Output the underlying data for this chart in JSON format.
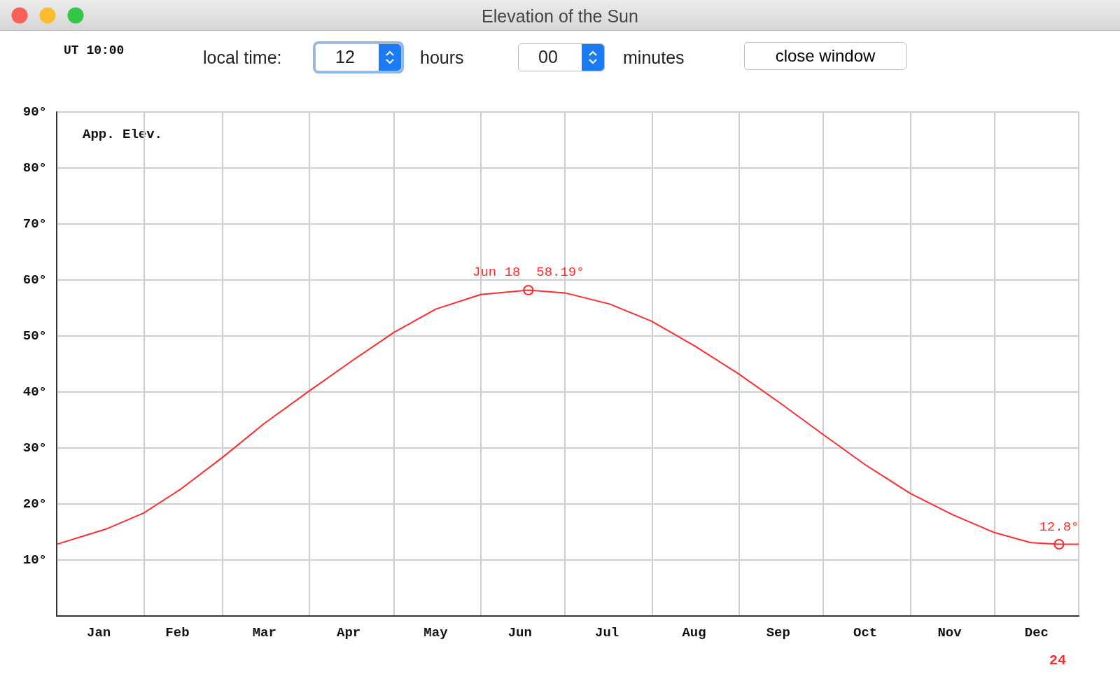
{
  "chart_data": {
    "type": "line",
    "title": "Elevation of the Sun",
    "x": [
      "--01-01",
      "--01-19",
      "--02-01",
      "--02-14",
      "--03-01",
      "--03-16",
      "--04-01",
      "--04-16",
      "--05-01",
      "--05-16",
      "--06-01",
      "--06-18",
      "--07-01",
      "--07-17",
      "--08-01",
      "--08-16",
      "--09-01",
      "--09-16",
      "--10-01",
      "--10-16",
      "--11-01",
      "--11-16",
      "--12-01",
      "--12-14",
      "--12-24",
      "--12-31"
    ],
    "series": [
      {
        "color": "#ff2a2a",
        "values": [
          12.8,
          15.6,
          18.4,
          22.6,
          28.3,
          34.4,
          40.2,
          45.5,
          50.6,
          54.8,
          57.4,
          58.19,
          57.7,
          55.7,
          52.6,
          48.3,
          43.2,
          37.9,
          32.4,
          27.0,
          21.9,
          18.1,
          14.9,
          13.1,
          12.8,
          12.8
        ]
      }
    ],
    "xlim": [
      "--01-01",
      "--12-31"
    ],
    "xticks": [
      {
        "value": "--01-01",
        "label": null
      },
      {
        "value": "--01-16",
        "label": "Jan"
      },
      {
        "value": "--02-01",
        "label": null
      },
      {
        "value": "--02-13",
        "label": "Feb"
      },
      {
        "value": "--03-01",
        "label": null
      },
      {
        "value": "--03-16",
        "label": "Mar"
      },
      {
        "value": "--04-01",
        "label": null
      },
      {
        "value": "--04-15",
        "label": "Apr"
      },
      {
        "value": "--05-01",
        "label": null
      },
      {
        "value": "--05-16",
        "label": "May"
      },
      {
        "value": "--06-01",
        "label": null
      },
      {
        "value": "--06-15",
        "label": "Jun"
      },
      {
        "value": "--07-01",
        "label": null
      },
      {
        "value": "--07-16",
        "label": "Jul"
      },
      {
        "value": "--08-01",
        "label": null
      },
      {
        "value": "--08-16",
        "label": "Aug"
      },
      {
        "value": "--09-01",
        "label": null
      },
      {
        "value": "--09-15",
        "label": "Sep"
      },
      {
        "value": "--10-01",
        "label": null
      },
      {
        "value": "--10-16",
        "label": "Oct"
      },
      {
        "value": "--11-01",
        "label": null
      },
      {
        "value": "--11-15",
        "label": "Nov"
      },
      {
        "value": "--12-01",
        "label": null
      },
      {
        "value": "--12-16",
        "label": "Dec"
      },
      {
        "value": "--12-31",
        "label": null
      }
    ],
    "ylim": [
      0,
      90
    ],
    "yticks": [
      {
        "value": 10,
        "label": "10°"
      },
      {
        "value": 20,
        "label": "20°"
      },
      {
        "value": 30,
        "label": "30°"
      },
      {
        "value": 40,
        "label": "40°"
      },
      {
        "value": 50,
        "label": "50°"
      },
      {
        "value": 60,
        "label": "60°"
      },
      {
        "value": 70,
        "label": "70°"
      },
      {
        "value": 80,
        "label": "80°"
      },
      {
        "value": 90,
        "label": "90°"
      }
    ],
    "grid": true,
    "marker": "none",
    "annotations": [
      "UT 10:00",
      "local time:",
      "12",
      "hours",
      "00",
      "minutes",
      "close window",
      "App. Elev.",
      {
        "text": "Jun 18  58.19°",
        "x": "--06-18",
        "y": 58.19
      },
      {
        "text": "12.8°",
        "x": "--12-24",
        "y": 12.8
      },
      "24"
    ]
  }
}
